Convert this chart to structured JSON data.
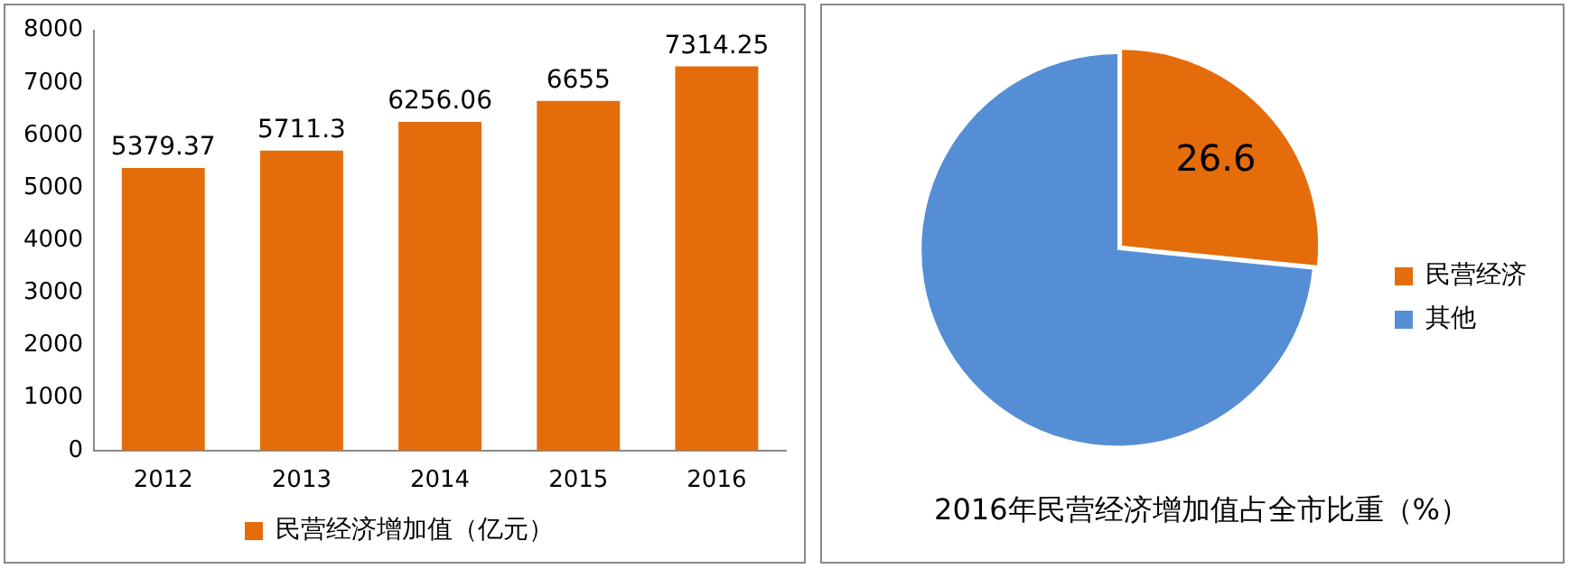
{
  "chart_data": [
    {
      "type": "bar",
      "categories": [
        "2012",
        "2013",
        "2014",
        "2015",
        "2016"
      ],
      "series": [
        {
          "name": "民营经济增加值（亿元）",
          "color": "#e46c0a",
          "values": [
            5379.37,
            5711.3,
            6256.06,
            6655,
            7314.25
          ]
        }
      ],
      "ylim": [
        0,
        8000
      ],
      "yticks": [
        0,
        1000,
        2000,
        3000,
        4000,
        5000,
        6000,
        7000,
        8000
      ],
      "grid": false,
      "legend": "bottom",
      "data_labels": true
    },
    {
      "type": "pie",
      "title": "2016年民营经济增加值占全市比重（%）",
      "categories": [
        "民营经济",
        "其他"
      ],
      "values": [
        26.6,
        73.4
      ],
      "colors": [
        "#e46c0a",
        "#558ed5"
      ],
      "value_labels": [
        "26.6",
        null
      ],
      "legend": "right"
    }
  ]
}
